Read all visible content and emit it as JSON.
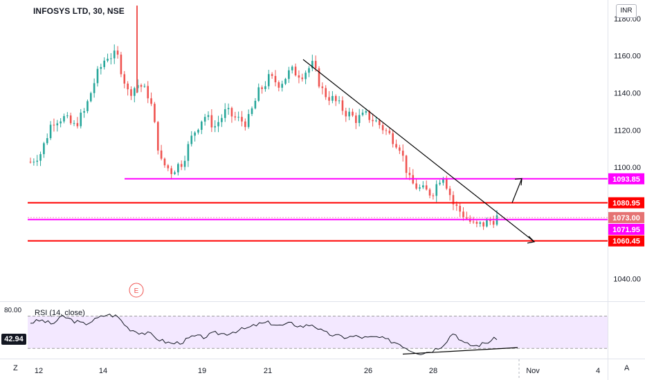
{
  "title": "INFOSYS LTD, 30, NSE",
  "currency": "INR",
  "rsi_label": "RSI (14, close)",
  "rsi_current": "42.94",
  "rsi_top_label": "80.00",
  "bottom_left": "Z",
  "bottom_right": "A",
  "event_marker": "E",
  "colors": {
    "up": "#26a69a",
    "down": "#ef5350",
    "support_line": "#ff0000",
    "magenta_line": "#ff00ff",
    "trendline": "#000000",
    "rsi_line": "#131722",
    "rsi_band": "#f3e8ff"
  },
  "chart_data": [
    {
      "type": "candlestick",
      "title": "INFOSYS LTD, 30, NSE",
      "ylim": [
        1028,
        1190
      ],
      "y_ticks": [
        "1180.00",
        "1160.00",
        "1140.00",
        "1120.00",
        "1100.00",
        "1040.00"
      ],
      "x_ticks": [
        "12",
        "14",
        "19",
        "21",
        "26",
        "28",
        "Nov",
        "4"
      ],
      "horizontal_levels": [
        {
          "value": 1093.85,
          "label": "1093.85",
          "color": "magenta"
        },
        {
          "value": 1080.95,
          "label": "1080.95",
          "color": "red"
        },
        {
          "value": 1073.0,
          "label": "1073.00",
          "color": "current-price"
        },
        {
          "value": 1071.95,
          "label": "1071.95",
          "color": "magenta"
        },
        {
          "value": 1060.45,
          "label": "1060.45",
          "color": "red"
        }
      ],
      "approx_close_path": [
        1103,
        1108,
        1125,
        1127,
        1122,
        1130,
        1148,
        1160,
        1160,
        1140,
        1145,
        1138,
        1103,
        1098,
        1103,
        1118,
        1128,
        1122,
        1130,
        1126,
        1124,
        1140,
        1148,
        1145,
        1152,
        1150,
        1155,
        1140,
        1136,
        1130,
        1126,
        1128,
        1124,
        1118,
        1112,
        1092,
        1088,
        1086,
        1097,
        1080,
        1074,
        1068,
        1070,
        1073
      ],
      "annotations": [
        "descending trendline from about 1158 (21 Oct) towards 1070 (beyond 29 Oct)",
        "projection arrow up towards 1094",
        "event marker E"
      ]
    },
    {
      "type": "line",
      "title": "RSI (14, close)",
      "ylim": [
        20,
        85
      ],
      "band": [
        30,
        70
      ],
      "current_value": 42.94,
      "values": [
        62,
        65,
        60,
        70,
        64,
        60,
        66,
        72,
        70,
        55,
        50,
        48,
        40,
        36,
        38,
        45,
        44,
        49,
        48,
        52,
        55,
        60,
        62,
        58,
        61,
        57,
        60,
        50,
        46,
        44,
        45,
        43,
        44,
        40,
        36,
        28,
        24,
        27,
        34,
        50,
        36,
        33,
        37,
        43
      ],
      "annotations": [
        "rising trendline below RSI lows"
      ]
    }
  ]
}
